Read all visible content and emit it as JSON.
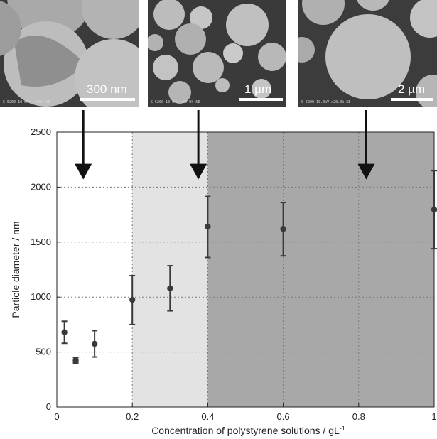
{
  "micrographs": [
    {
      "scale_label": "300 nm",
      "meta": "S-5200 10.0kV x100k SE"
    },
    {
      "scale_label": "1 µm",
      "meta": "S-5200 10.0kV x20.0k SE"
    },
    {
      "scale_label": "2 µm",
      "meta": "S-5200 10.0kV x20.0k SE"
    }
  ],
  "chart_data": {
    "type": "scatter",
    "xlabel": "Concentration of polystyrene solutions / gL",
    "xlabel_superscript": "-1",
    "ylabel": "Particle diameter / nm",
    "xlim": [
      0,
      1
    ],
    "ylim": [
      0,
      2500
    ],
    "xticks": [
      0,
      0.2,
      0.4,
      0.6,
      0.8,
      1
    ],
    "xtick_labels": [
      "0",
      "0.2",
      "0.4",
      "0.6",
      "0.8",
      "1"
    ],
    "yticks": [
      0,
      500,
      1000,
      1500,
      2000,
      2500
    ],
    "ytick_labels": [
      "0",
      "500",
      "1000",
      "1500",
      "2000",
      "2500"
    ],
    "grid": true,
    "points": [
      {
        "x": 0.02,
        "y": 680,
        "err_low": 580,
        "err_high": 780
      },
      {
        "x": 0.05,
        "y": 425,
        "err_low": 400,
        "err_high": 450
      },
      {
        "x": 0.1,
        "y": 575,
        "err_low": 455,
        "err_high": 695
      },
      {
        "x": 0.2,
        "y": 975,
        "err_low": 750,
        "err_high": 1195
      },
      {
        "x": 0.3,
        "y": 1080,
        "err_low": 875,
        "err_high": 1285
      },
      {
        "x": 0.4,
        "y": 1640,
        "err_low": 1360,
        "err_high": 1915
      },
      {
        "x": 0.6,
        "y": 1620,
        "err_low": 1375,
        "err_high": 1860
      },
      {
        "x": 1.0,
        "y": 1795,
        "err_low": 1440,
        "err_high": 2150
      }
    ],
    "regions": [
      {
        "x_start": 0,
        "x_end": 0.2,
        "color": "#ffffff"
      },
      {
        "x_start": 0.2,
        "x_end": 0.4,
        "color": "#e3e3e3"
      },
      {
        "x_start": 0.4,
        "x_end": 1.0,
        "color": "#a8a8a8"
      }
    ],
    "arrows": [
      {
        "x": 0.07,
        "y_tip": 2070
      },
      {
        "x": 0.375,
        "y_tip": 2070
      },
      {
        "x": 0.82,
        "y_tip": 2070
      }
    ],
    "marker_color": "#3a3a3a"
  }
}
